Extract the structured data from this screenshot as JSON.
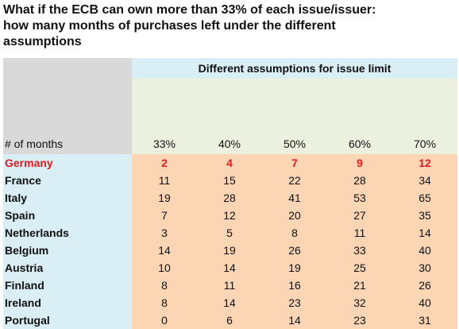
{
  "title": {
    "line1": "What if the ECB can own more than 33% of each issue/issuer:",
    "line2": "how many months of purchases left under the different",
    "line3": "assumptions"
  },
  "chart_data": {
    "type": "table",
    "header_group": "Different assumptions for issue limit",
    "row_header": "# of months",
    "columns": [
      "33%",
      "40%",
      "50%",
      "60%",
      "70%"
    ],
    "highlight_color": "#e0191e",
    "rows": [
      {
        "country": "Germany",
        "values": [
          2,
          4,
          7,
          9,
          12
        ],
        "highlight": true
      },
      {
        "country": "France",
        "values": [
          11,
          15,
          22,
          28,
          34
        ]
      },
      {
        "country": "Italy",
        "values": [
          19,
          28,
          41,
          53,
          65
        ]
      },
      {
        "country": "Spain",
        "values": [
          7,
          12,
          20,
          27,
          35
        ]
      },
      {
        "country": "Netherlands",
        "values": [
          3,
          5,
          8,
          11,
          14
        ]
      },
      {
        "country": "Belgium",
        "values": [
          14,
          19,
          26,
          33,
          40
        ]
      },
      {
        "country": "Austria",
        "values": [
          10,
          14,
          19,
          25,
          30
        ]
      },
      {
        "country": "Finland",
        "values": [
          8,
          11,
          16,
          21,
          26
        ]
      },
      {
        "country": "Ireland",
        "values": [
          8,
          14,
          23,
          32,
          40
        ]
      },
      {
        "country": "Portugal",
        "values": [
          0,
          6,
          14,
          23,
          31
        ]
      }
    ]
  }
}
